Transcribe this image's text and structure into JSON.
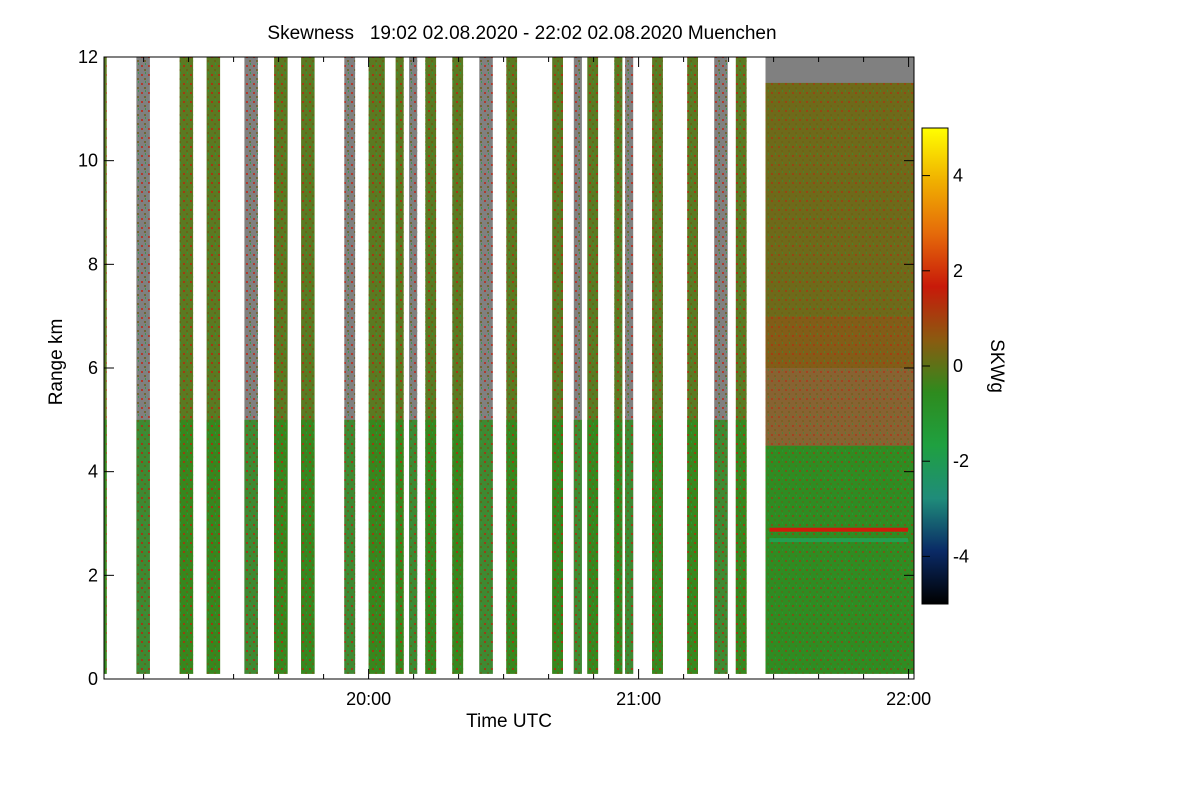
{
  "chart_data": {
    "type": "heatmap",
    "title": "Skewness   19:02 02.08.2020 - 22:02 02.08.2020 Muenchen",
    "xlabel": "Time UTC",
    "ylabel": "Range km",
    "colorbar_label": "SKWg",
    "xlim_hours": [
      19.02,
      22.02
    ],
    "ylim": [
      0,
      12
    ],
    "x_ticks": [
      {
        "value": 20.0,
        "label": "20:00"
      },
      {
        "value": 21.0,
        "label": "21:00"
      },
      {
        "value": 22.0,
        "label": "22:00"
      }
    ],
    "x_minor_ticks_hours": [
      19.0,
      19.1667,
      19.3333,
      19.5,
      19.6667,
      19.8333,
      20.1667,
      20.3333,
      20.5,
      20.6667,
      20.8333,
      21.1667,
      21.3333,
      21.5,
      21.6667,
      21.8333
    ],
    "y_ticks": [
      0,
      2,
      4,
      6,
      8,
      10,
      12
    ],
    "colorbar_range": [
      -5,
      5
    ],
    "colorbar_ticks": [
      -4,
      -2,
      0,
      2,
      4
    ],
    "colormap": [
      "#000000",
      "#0a2a66",
      "#1f8c7a",
      "#1fa040",
      "#2e8b1e",
      "#8b5a10",
      "#c81a0a",
      "#e56a0a",
      "#f0b000",
      "#ffff00"
    ],
    "no_signal_color": "#808080",
    "data_blocks_hours": [
      [
        19.02,
        19.03
      ],
      [
        19.14,
        19.19
      ],
      [
        19.3,
        19.35
      ],
      [
        19.4,
        19.45
      ],
      [
        19.54,
        19.59
      ],
      [
        19.65,
        19.7
      ],
      [
        19.75,
        19.8
      ],
      [
        19.91,
        19.95
      ],
      [
        20.0,
        20.06
      ],
      [
        20.1,
        20.13
      ],
      [
        20.15,
        20.18
      ],
      [
        20.21,
        20.25
      ],
      [
        20.31,
        20.35
      ],
      [
        20.41,
        20.46
      ],
      [
        20.51,
        20.55
      ],
      [
        20.68,
        20.72
      ],
      [
        20.76,
        20.79
      ],
      [
        20.81,
        20.85
      ],
      [
        20.91,
        20.94
      ],
      [
        20.95,
        20.98
      ],
      [
        21.05,
        21.09
      ],
      [
        21.18,
        21.22
      ],
      [
        21.28,
        21.33
      ],
      [
        21.36,
        21.4
      ],
      [
        21.47,
        22.02
      ]
    ],
    "data_block_top_km": 12,
    "data_block_bottom_km": 0.1,
    "continuous_block_echo_top_km": 11.5,
    "layer_features_km": [
      {
        "range_km": 2.88,
        "skewness": 1.5
      },
      {
        "range_km": 2.68,
        "skewness": -1.5
      }
    ],
    "grid": false,
    "legend": "colorbar-right"
  }
}
